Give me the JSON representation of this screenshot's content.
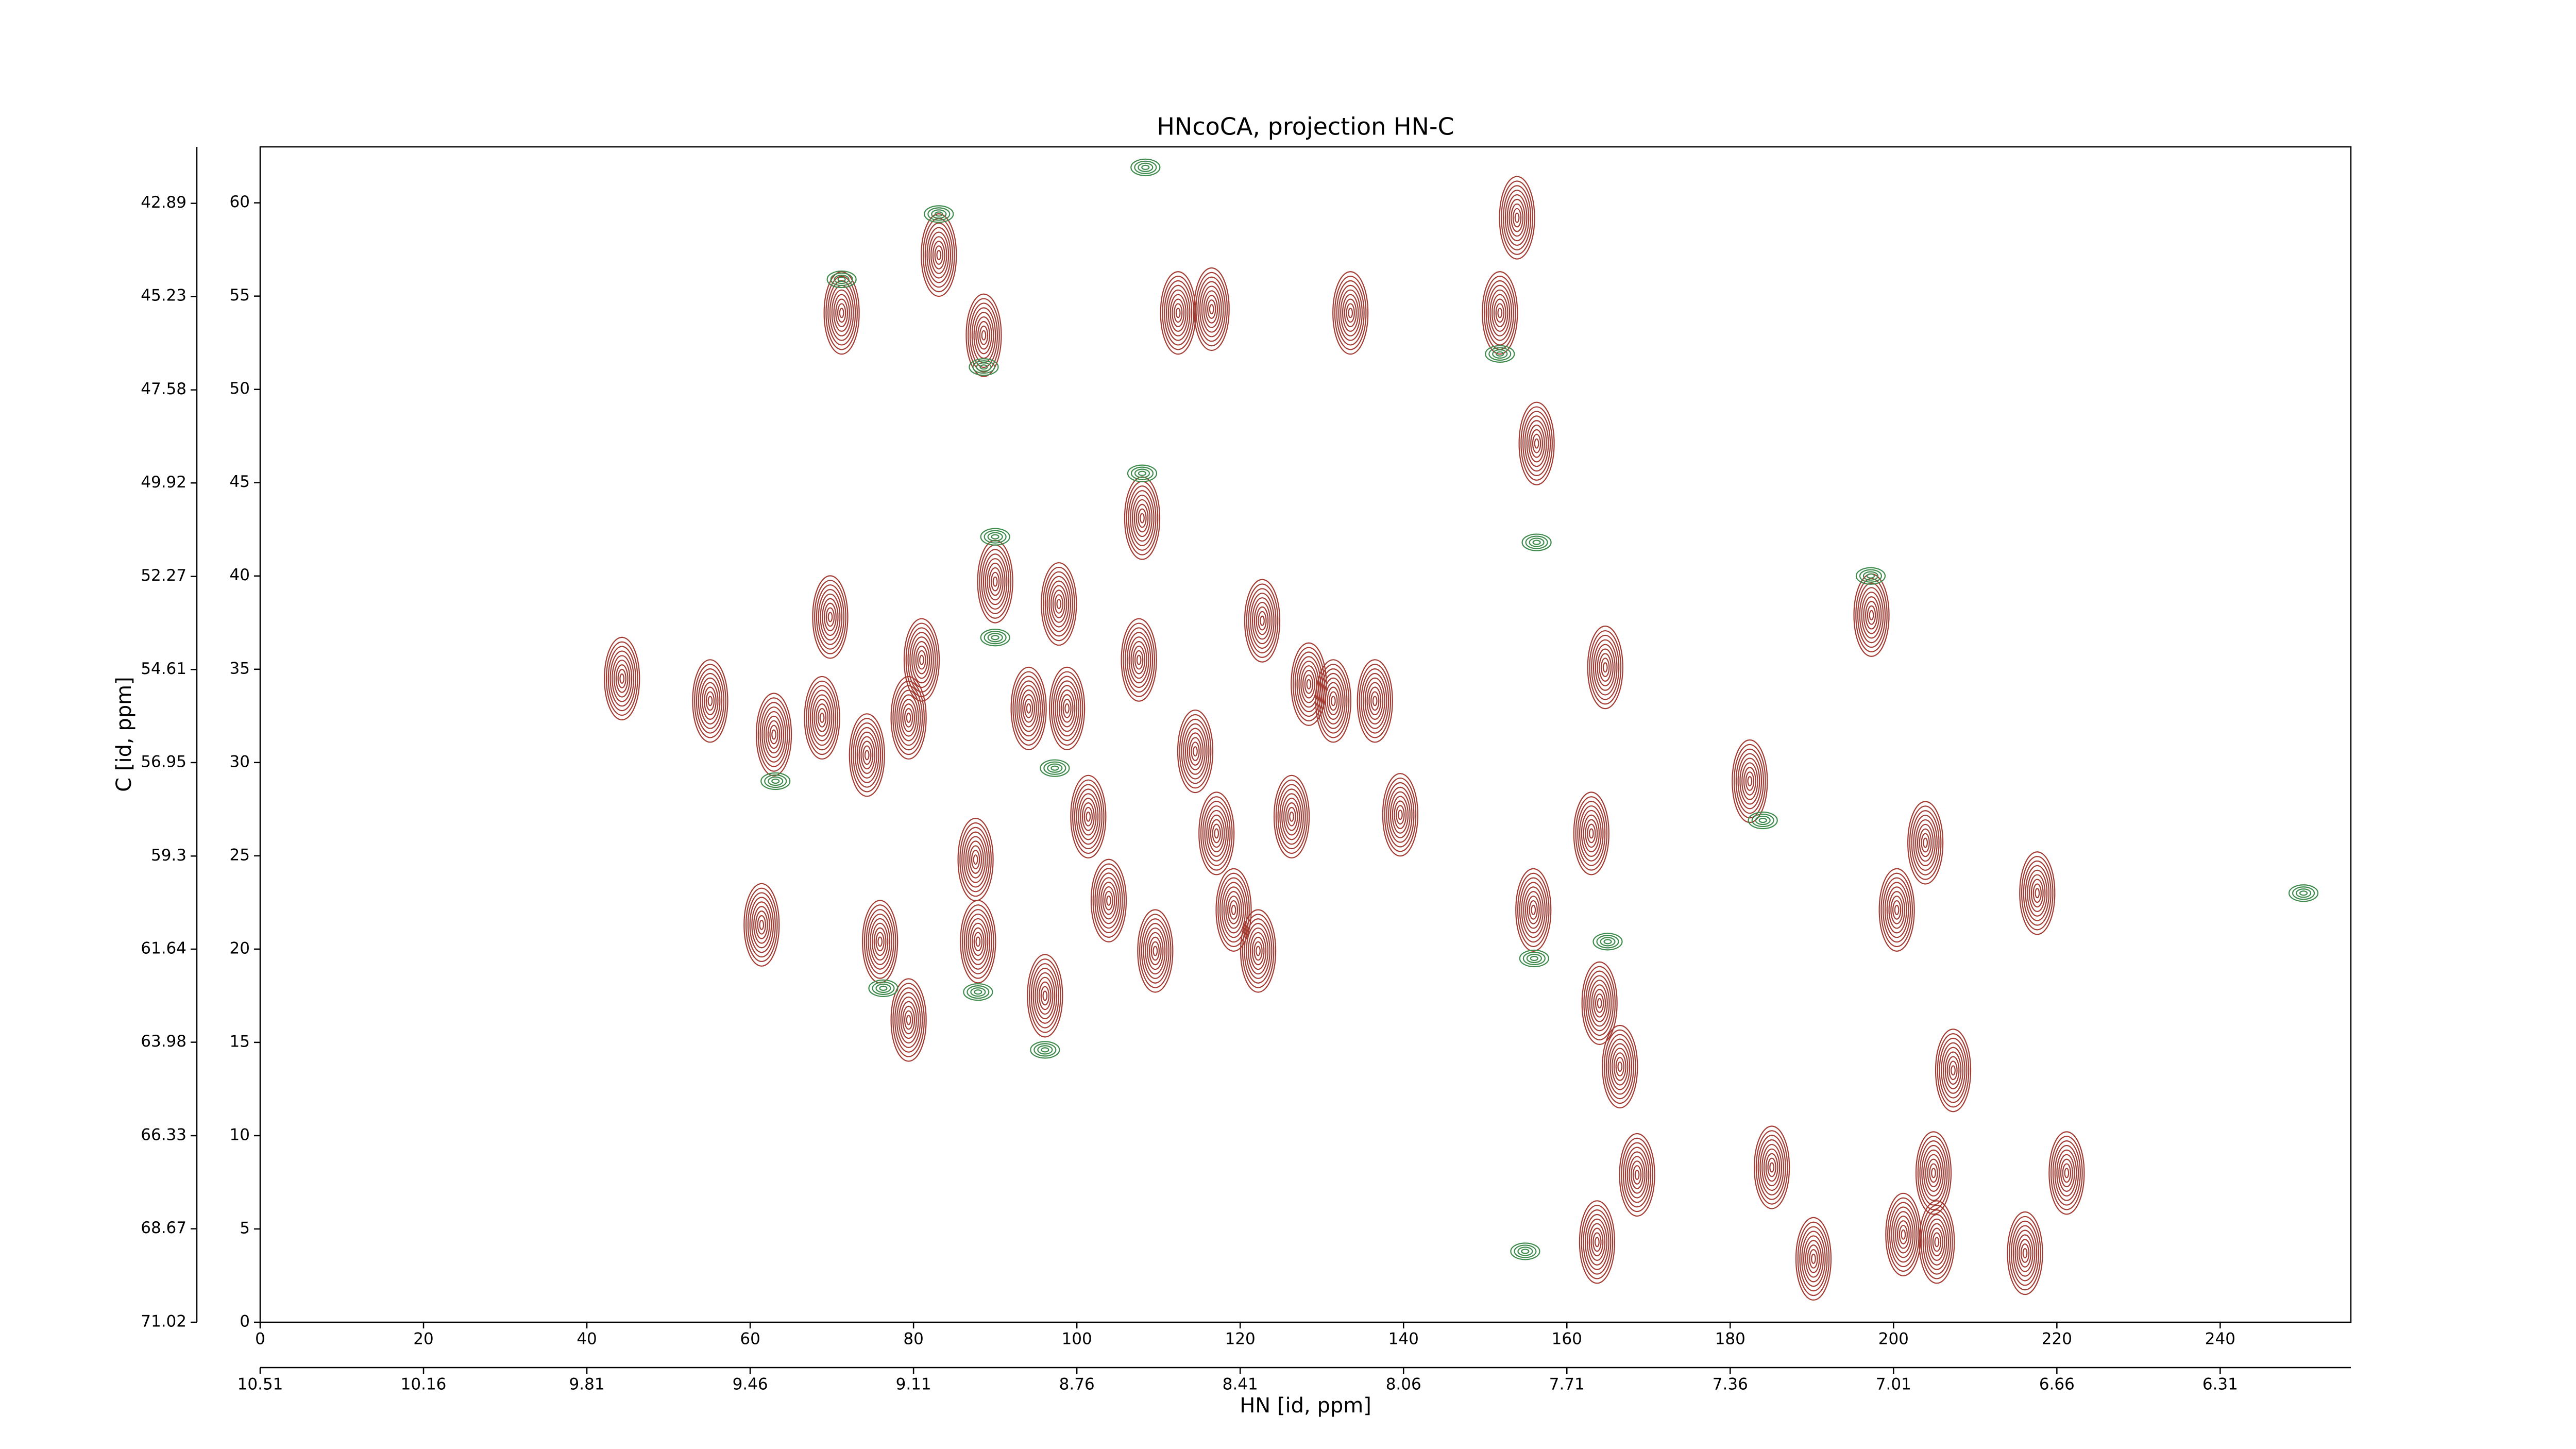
{
  "chart_data": {
    "type": "contour",
    "title": "HNcoCA, projection HN-C",
    "xlabel": "HN [id, ppm]",
    "ylabel": "C [id, ppm]",
    "xlim": [
      0,
      256
    ],
    "ylim": [
      0,
      63
    ],
    "xticks": [
      0,
      20,
      40,
      60,
      80,
      100,
      120,
      140,
      160,
      180,
      200,
      220,
      240
    ],
    "yticks": [
      0,
      5,
      10,
      15,
      20,
      25,
      30,
      35,
      40,
      45,
      50,
      55,
      60
    ],
    "x2lim": [
      10.51,
      6.03
    ],
    "x2ticks": [
      10.51,
      10.16,
      9.81,
      9.46,
      9.11,
      8.76,
      8.41,
      8.06,
      7.71,
      7.36,
      7.01,
      6.66,
      6.31
    ],
    "y2lim": [
      71.02,
      41.47
    ],
    "y2ticks": [
      71.02,
      68.67,
      66.33,
      63.98,
      61.64,
      59.3,
      56.95,
      54.61,
      52.27,
      49.92,
      47.58,
      45.23,
      42.89
    ],
    "series": [
      {
        "color": "#a33b32",
        "x": [
          71.2,
          83.1,
          88.6,
          112.4,
          116.5,
          133.5,
          151.8,
          108,
          90,
          97.8,
          69.8,
          44.3,
          55.1,
          62.9,
          68.8,
          74.3,
          79.4,
          81,
          94.1,
          98.8,
          107.6,
          114.5,
          122.7,
          128.4,
          131.4,
          136.5,
          164.7,
          197.3,
          182.4,
          139.6,
          126.3,
          117.1,
          101.4,
          87.6,
          103.9,
          163,
          155.9,
          203.9,
          200.4,
          217.6,
          61.4,
          75.9,
          87.9,
          109.6,
          119.2,
          122.2,
          96.1,
          79.4,
          164,
          166.5,
          207.3,
          168.6,
          204.9,
          221.2,
          163.7,
          201.2,
          205.3,
          190.2,
          216.1,
          185.1,
          153.9,
          156.3
        ],
        "y": [
          54.1,
          57.2,
          52.9,
          54.1,
          54.3,
          54.1,
          54.1,
          43.1,
          39.7,
          38.5,
          37.8,
          34.5,
          33.3,
          31.5,
          32.4,
          30.4,
          32.4,
          35.5,
          32.9,
          32.9,
          35.5,
          30.6,
          37.6,
          34.2,
          33.3,
          33.3,
          35.1,
          37.9,
          29,
          27.2,
          27.1,
          26.2,
          27.1,
          24.8,
          22.6,
          26.2,
          22.1,
          25.7,
          22.1,
          23,
          21.3,
          20.4,
          20.4,
          19.9,
          22.1,
          19.9,
          17.5,
          16.2,
          17.1,
          13.7,
          13.5,
          7.9,
          8,
          8,
          4.3,
          4.7,
          4.3,
          3.4,
          3.7,
          8.3,
          59.2,
          47.1
        ]
      },
      {
        "color": "#3d8a4c",
        "x": [
          83.1,
          71.2,
          88.6,
          151.8,
          108,
          90,
          90,
          63.1,
          97.3,
          165,
          76.3,
          87.9,
          96.1,
          156,
          156.3,
          108.4,
          197.2,
          184,
          250.2,
          154.9
        ],
        "y": [
          59.4,
          55.9,
          51.2,
          51.9,
          45.5,
          42.1,
          36.7,
          29,
          29.7,
          20.4,
          17.9,
          17.7,
          14.6,
          19.5,
          41.8,
          61.9,
          40,
          26.9,
          23,
          3.8
        ]
      }
    ]
  }
}
